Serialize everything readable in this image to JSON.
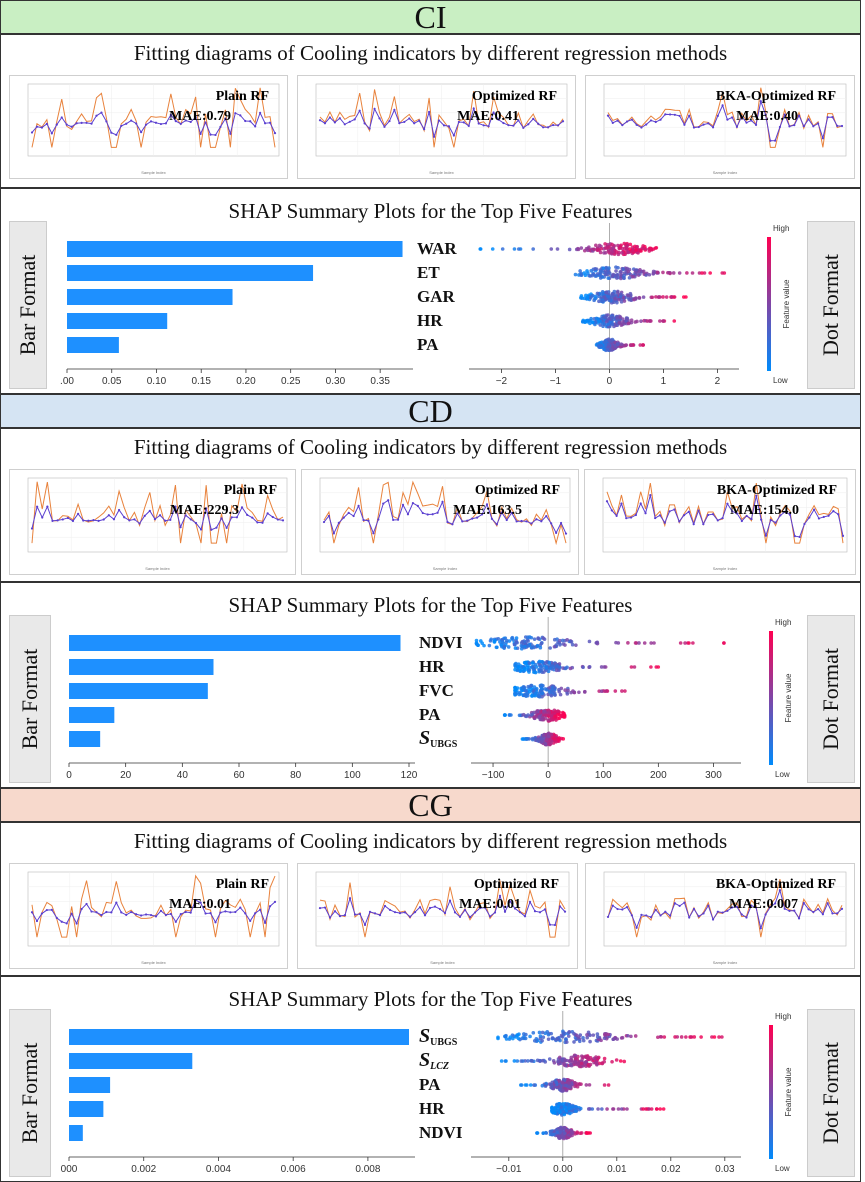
{
  "colors": {
    "bar": "#1e90ff",
    "actual": "#e8823c",
    "predicted": "#5a3fd0",
    "ci_band": "#c9efc3",
    "cd_band": "#d5e4f3",
    "cg_band": "#f7d9cc",
    "high": "#ff0051",
    "low": "#008bfb"
  },
  "sections": [
    {
      "id": "ci",
      "code": "CI",
      "fit_heading": "Fitting diagrams of Cooling indicators by different regression methods",
      "fit_panels": [
        {
          "method": "Plain RF",
          "mae": "MAE:0.79",
          "seed": 1
        },
        {
          "method": "Optimized RF",
          "mae": "MAE:0.41",
          "seed": 2
        },
        {
          "method": "BKA-Optimized RF",
          "mae": "MAE:0.40",
          "seed": 3
        }
      ],
      "shap_heading": "SHAP Summary Plots for the Top Five Features",
      "left_label": "Bar Format",
      "right_label": "Dot Format",
      "colorbar": {
        "high": "High",
        "low": "Low",
        "title": "Feature value"
      },
      "chart_data": {
        "type": "bar",
        "orientation": "horizontal",
        "categories": [
          "WAR",
          "ET",
          "GAR",
          "HR",
          "PA"
        ],
        "values": [
          0.375,
          0.275,
          0.185,
          0.112,
          0.058
        ],
        "xlim": [
          0,
          0.38
        ],
        "xticks": [
          0,
          0.05,
          0.1,
          0.15,
          0.2,
          0.25,
          0.3,
          0.35
        ],
        "xtick_labels": [
          ".00",
          "0.05",
          "0.10",
          "0.15",
          "0.20",
          "0.25",
          "0.30",
          "0.35"
        ]
      },
      "dot_data": {
        "type": "scatter",
        "xlim": [
          -2.6,
          2.4
        ],
        "xticks": [
          -2,
          -1,
          0,
          1,
          2
        ],
        "xtick_labels": [
          "−2",
          "−1",
          "0",
          "1",
          "2"
        ],
        "features": [
          {
            "range": [
              -2.4,
              0.9
            ],
            "center": 0.15,
            "spread": 0.45
          },
          {
            "range": [
              -0.8,
              2.2
            ],
            "center": 0.1,
            "spread": 0.5
          },
          {
            "range": [
              -0.6,
              1.5
            ],
            "center": 0.05,
            "spread": 0.35
          },
          {
            "range": [
              -0.5,
              1.3
            ],
            "center": 0.0,
            "spread": 0.3
          },
          {
            "range": [
              -0.3,
              0.7
            ],
            "center": 0.0,
            "spread": 0.15
          }
        ]
      }
    },
    {
      "id": "cd",
      "code": "CD",
      "fit_heading": "Fitting diagrams of Cooling indicators by different regression methods",
      "fit_panels": [
        {
          "method": "Plain RF",
          "mae": "MAE:229.3",
          "seed": 4
        },
        {
          "method": "Optimized RF",
          "mae": "MAE:163.5",
          "seed": 5
        },
        {
          "method": "BKA-Optimized RF",
          "mae": "MAE:154.0",
          "seed": 6
        }
      ],
      "shap_heading": "SHAP Summary Plots for the Top Five Features",
      "left_label": "Bar Format",
      "right_label": "Dot Format",
      "colorbar": {
        "high": "High",
        "low": "Low",
        "title": "Feature value"
      },
      "chart_data": {
        "type": "bar",
        "orientation": "horizontal",
        "categories": [
          "NDVI",
          "HR",
          "FVC",
          "PA",
          "S_UBGS"
        ],
        "category_display": [
          [
            "NDVI",
            ""
          ],
          [
            "HR",
            ""
          ],
          [
            "FVC",
            ""
          ],
          [
            "PA",
            ""
          ],
          [
            "S",
            "UBGS"
          ]
        ],
        "values": [
          117,
          51,
          49,
          16,
          11
        ],
        "xlim": [
          0,
          120
        ],
        "xticks": [
          0,
          20,
          40,
          60,
          80,
          100,
          120
        ],
        "xtick_labels": [
          "0",
          "20",
          "40",
          "60",
          "80",
          "100",
          "120"
        ]
      },
      "dot_data": {
        "type": "scatter",
        "xlim": [
          -140,
          350
        ],
        "xticks": [
          -100,
          0,
          100,
          200,
          300
        ],
        "xtick_labels": [
          "−100",
          "0",
          "100",
          "200",
          "300"
        ],
        "features": [
          {
            "range": [
              -130,
              330
            ],
            "center": -40,
            "spread": 80
          },
          {
            "range": [
              -60,
              210
            ],
            "center": -20,
            "spread": 40
          },
          {
            "range": [
              -60,
              170
            ],
            "center": -20,
            "spread": 50
          },
          {
            "range": [
              -80,
              30
            ],
            "center": 0,
            "spread": 25
          },
          {
            "range": [
              -50,
              30
            ],
            "center": 0,
            "spread": 15
          }
        ]
      }
    },
    {
      "id": "cg",
      "code": "CG",
      "fit_heading": "Fitting diagrams of Cooling indicators by different regression methods",
      "fit_panels": [
        {
          "method": "Plain RF",
          "mae": "MAE:0.01",
          "seed": 7
        },
        {
          "method": "Optimized RF",
          "mae": "MAE:0.01",
          "seed": 8
        },
        {
          "method": "BKA-Optimized RF",
          "mae": "MAE:0.007",
          "seed": 9
        }
      ],
      "shap_heading": "SHAP Summary Plots for the Top Five Features",
      "left_label": "Bar Format",
      "right_label": "Dot Format",
      "colorbar": {
        "high": "High",
        "low": "Low",
        "title": "Feature value"
      },
      "chart_data": {
        "type": "bar",
        "orientation": "horizontal",
        "categories": [
          "S_UBGS",
          "S_LCZ",
          "PA",
          "HR",
          "NDVI"
        ],
        "category_display": [
          [
            "S",
            "UBGS"
          ],
          [
            "S",
            "LCZ"
          ],
          [
            "PA",
            ""
          ],
          [
            "HR",
            ""
          ],
          [
            "NDVI",
            ""
          ]
        ],
        "values": [
          0.0091,
          0.0033,
          0.0011,
          0.00092,
          0.00037
        ],
        "xlim": [
          0,
          0.0091
        ],
        "xticks": [
          0,
          0.002,
          0.004,
          0.006,
          0.008
        ],
        "xtick_labels": [
          "000",
          "0.002",
          "0.004",
          "0.006",
          "0.008"
        ]
      },
      "dot_data": {
        "type": "scatter",
        "xlim": [
          -0.017,
          0.033
        ],
        "xticks": [
          -0.01,
          0,
          0.01,
          0.02,
          0.03
        ],
        "xtick_labels": [
          "−0.01",
          "0.00",
          "0.01",
          "0.02",
          "0.03"
        ],
        "features": [
          {
            "range": [
              -0.012,
              0.03
            ],
            "center": 0.0,
            "spread": 0.008
          },
          {
            "range": [
              -0.012,
              0.012
            ],
            "center": 0.003,
            "spread": 0.004
          },
          {
            "range": [
              -0.008,
              0.01
            ],
            "center": 0.0,
            "spread": 0.002
          },
          {
            "range": [
              -0.002,
              0.019
            ],
            "center": 0.0,
            "spread": 0.002
          },
          {
            "range": [
              -0.005,
              0.006
            ],
            "center": 0.0,
            "spread": 0.0015
          }
        ]
      }
    }
  ]
}
